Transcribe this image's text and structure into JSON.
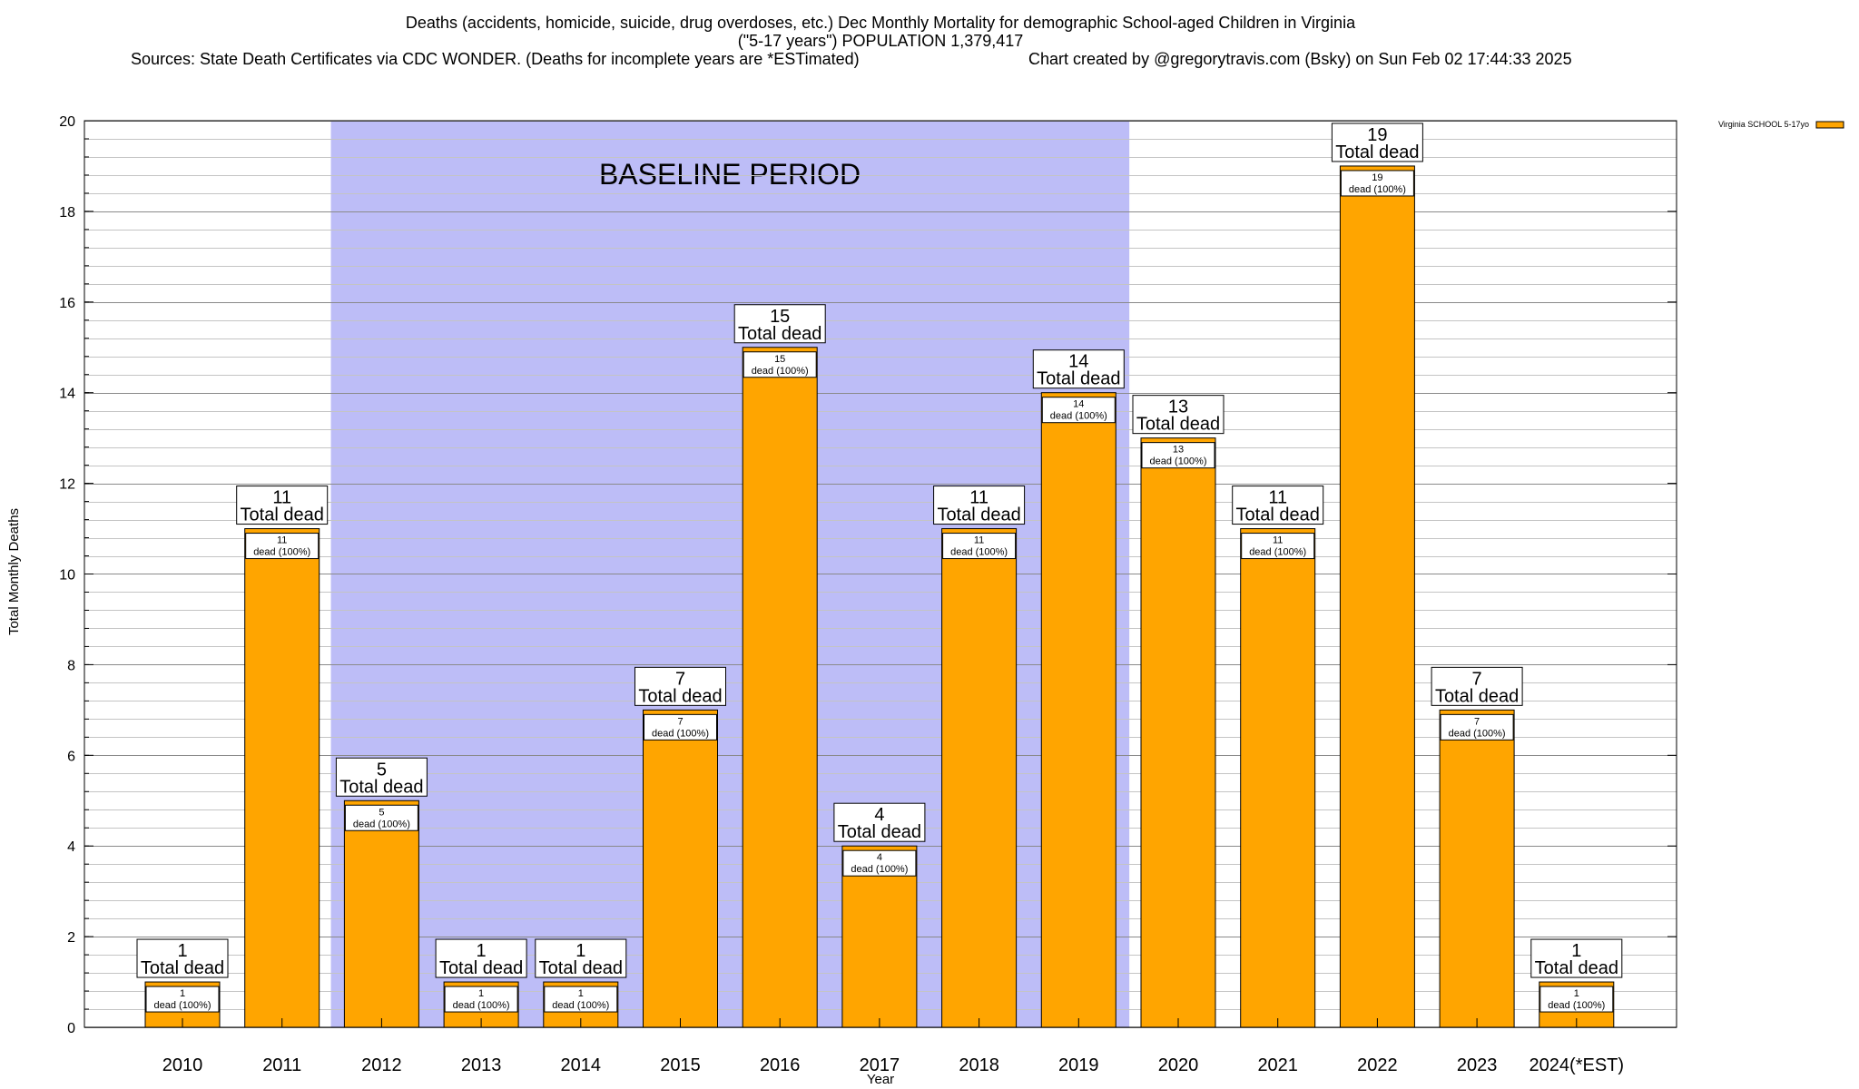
{
  "chart_data": {
    "type": "bar",
    "title_lines": [
      "Deaths (accidents, homicide, suicide, drug overdoses, etc.) Dec Monthly Mortality for demographic School-aged Children in Virginia",
      "(\"5-17 years\") POPULATION 1,379,417",
      "Sources: State Death Certificates via CDC WONDER. (Deaths for incomplete years are *ESTimated)",
      "Chart created by @gregorytravis.com (Bsky) on Sun Feb 02 17:44:33 2025"
    ],
    "xlabel": "Year",
    "ylabel": "Total Monthly Deaths",
    "ylim": [
      0,
      20
    ],
    "y_major_ticks": [
      0,
      2,
      4,
      6,
      8,
      10,
      12,
      14,
      16,
      18,
      20
    ],
    "y_minor_step": 0.4,
    "categories": [
      "2010",
      "2011",
      "2012",
      "2013",
      "2014",
      "2015",
      "2016",
      "2017",
      "2018",
      "2019",
      "2020",
      "2021",
      "2022",
      "2023",
      "2024(*EST)"
    ],
    "series": [
      {
        "name": "Virginia SCHOOL 5-17yo",
        "color": "#FFA500",
        "values": [
          1,
          11,
          5,
          1,
          1,
          7,
          15,
          4,
          11,
          14,
          13,
          11,
          19,
          7,
          1
        ]
      }
    ],
    "total_label_suffix": "Total dead",
    "inner_label_suffix": "dead (100%)",
    "baseline": {
      "label": "BASELINE PERIOD",
      "from_category": "2012",
      "to_category": "2019",
      "color": "#BDBDF7"
    },
    "legend_position": "top-right"
  }
}
